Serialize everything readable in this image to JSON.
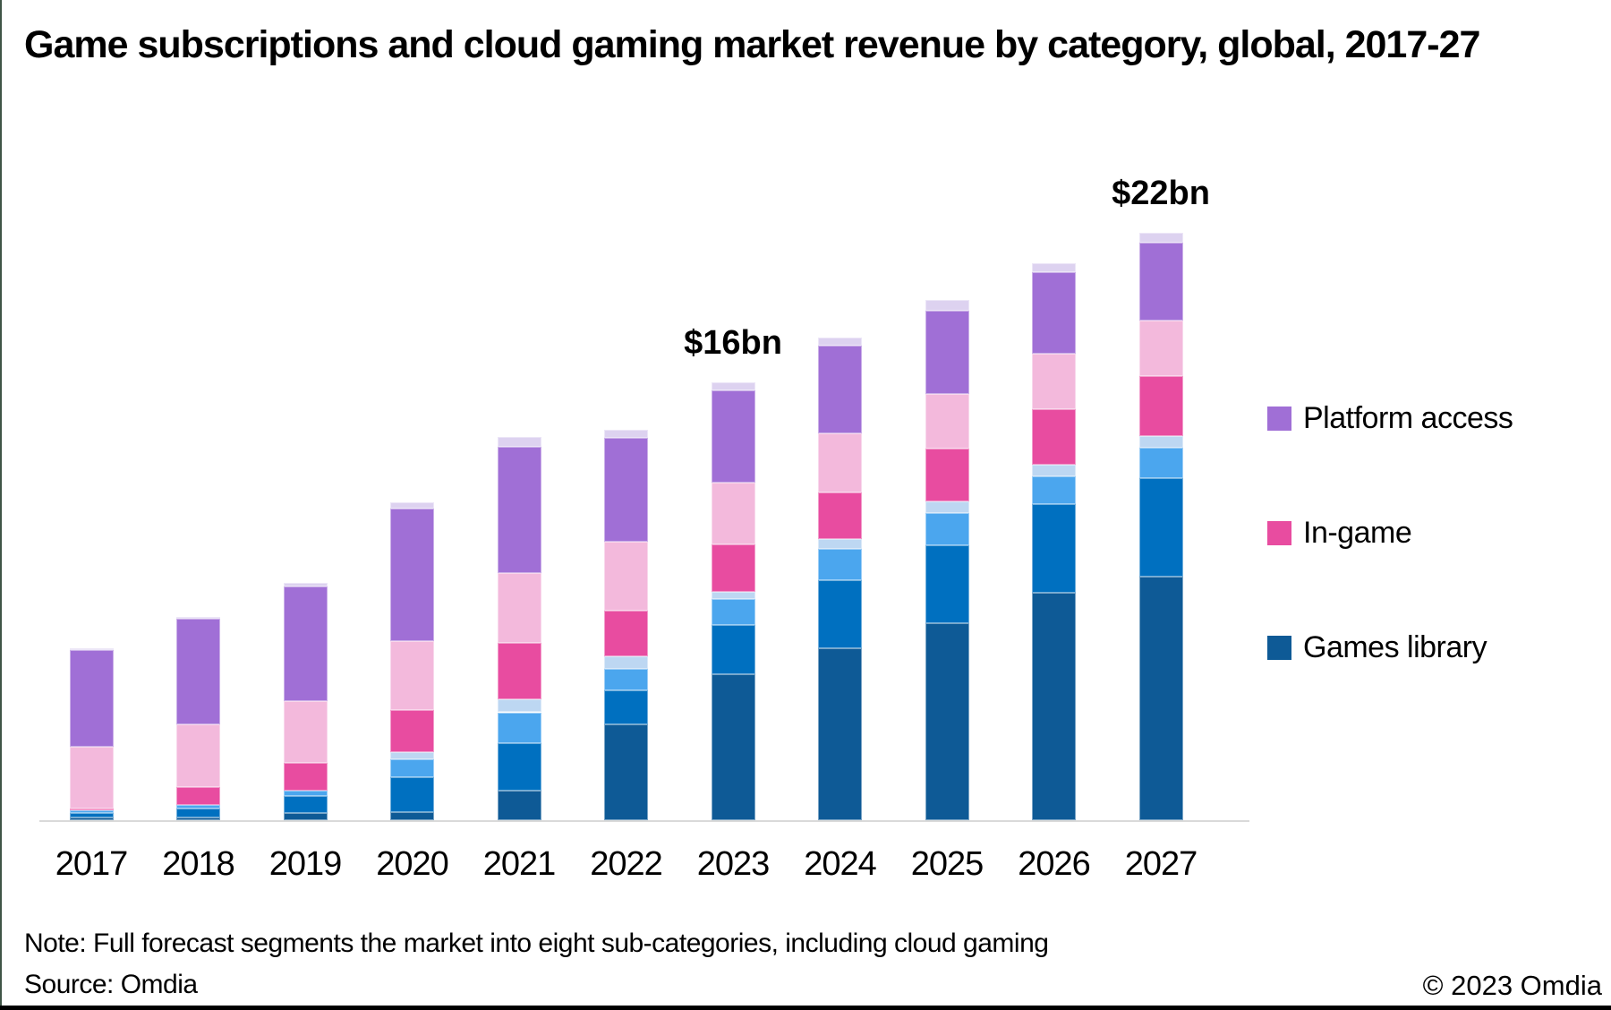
{
  "title": "Game subscriptions and cloud gaming market revenue by category, global, 2017-27",
  "footer": {
    "note": "Note: Full forecast segments the market into eight sub-categories, including cloud gaming",
    "source": "Source: Omdia",
    "copyright": "© 2023 Omdia"
  },
  "colors": {
    "left_border_accent": "#3F5547",
    "bottom_border": "#000000",
    "axis_line": "#D9D9D9",
    "text": "#000000",
    "background": "#FFFFFF"
  },
  "legend": [
    {
      "label": "Platform access",
      "color": "#A06FD6"
    },
    {
      "label": "In-game",
      "color": "#E84CA0"
    },
    {
      "label": "Games library",
      "color": "#0E5A96"
    }
  ],
  "chart_data": {
    "type": "bar",
    "stacked": true,
    "grid": false,
    "legend_position": "right",
    "title": "Game subscriptions and cloud gaming market revenue by category, global, 2017-27",
    "xlabel": "",
    "ylabel": "",
    "ylim": [
      0,
      24
    ],
    "categories": [
      "2017",
      "2018",
      "2019",
      "2020",
      "2021",
      "2022",
      "2023",
      "2024",
      "2025",
      "2026",
      "2027"
    ],
    "series": [
      {
        "name": "Games library — sub-segment 1 (darkest blue)",
        "group": "Games library",
        "color": "#0E5A96",
        "values": [
          0.1,
          0.1,
          0.27,
          0.3,
          1.1,
          3.6,
          5.48,
          6.45,
          7.36,
          8.53,
          9.13
        ]
      },
      {
        "name": "Games library — sub-segment 2 (medium blue)",
        "group": "Games library",
        "color": "#0070C0",
        "values": [
          0.17,
          0.33,
          0.64,
          1.3,
          1.77,
          1.27,
          1.84,
          2.54,
          2.94,
          3.31,
          3.68
        ]
      },
      {
        "name": "Games library — sub-segment 3 (sky blue)",
        "group": "Games library",
        "color": "#4BA6EE",
        "values": [
          0.1,
          0.13,
          0.2,
          0.67,
          1.17,
          0.8,
          0.97,
          1.17,
          1.2,
          1.04,
          1.14
        ]
      },
      {
        "name": "Games library — sub-segment 4 (pale blue)",
        "group": "Games library",
        "color": "#BDD7F2",
        "values": [
          0.0,
          0.0,
          0.0,
          0.27,
          0.5,
          0.47,
          0.27,
          0.37,
          0.43,
          0.43,
          0.43
        ]
      },
      {
        "name": "In-game — sub-segment 1 (magenta)",
        "group": "In-game",
        "color": "#E84CA0",
        "values": [
          0.05,
          0.67,
          1.04,
          1.57,
          2.1,
          1.7,
          1.77,
          1.74,
          1.97,
          2.07,
          2.24
        ]
      },
      {
        "name": "In-game — sub-segment 2 (light pink)",
        "group": "In-game",
        "color": "#F3B9DC",
        "values": [
          2.34,
          2.37,
          2.3,
          2.6,
          2.6,
          2.6,
          2.3,
          2.2,
          2.07,
          2.07,
          2.07
        ]
      },
      {
        "name": "Platform access — sub-segment 1 (purple)",
        "group": "Platform access",
        "color": "#A06FD6",
        "values": [
          3.6,
          3.95,
          4.3,
          4.95,
          4.75,
          3.88,
          3.45,
          3.3,
          3.11,
          3.08,
          2.94
        ]
      },
      {
        "name": "Platform access — sub-segment 2 (lavender)",
        "group": "Platform access",
        "color": "#DDD2F0",
        "values": [
          0.07,
          0.07,
          0.13,
          0.23,
          0.37,
          0.3,
          0.3,
          0.3,
          0.4,
          0.33,
          0.37
        ]
      }
    ],
    "annotations": [
      {
        "category": "2023",
        "label": "$16bn"
      },
      {
        "category": "2027",
        "label": "$22bn"
      }
    ]
  }
}
